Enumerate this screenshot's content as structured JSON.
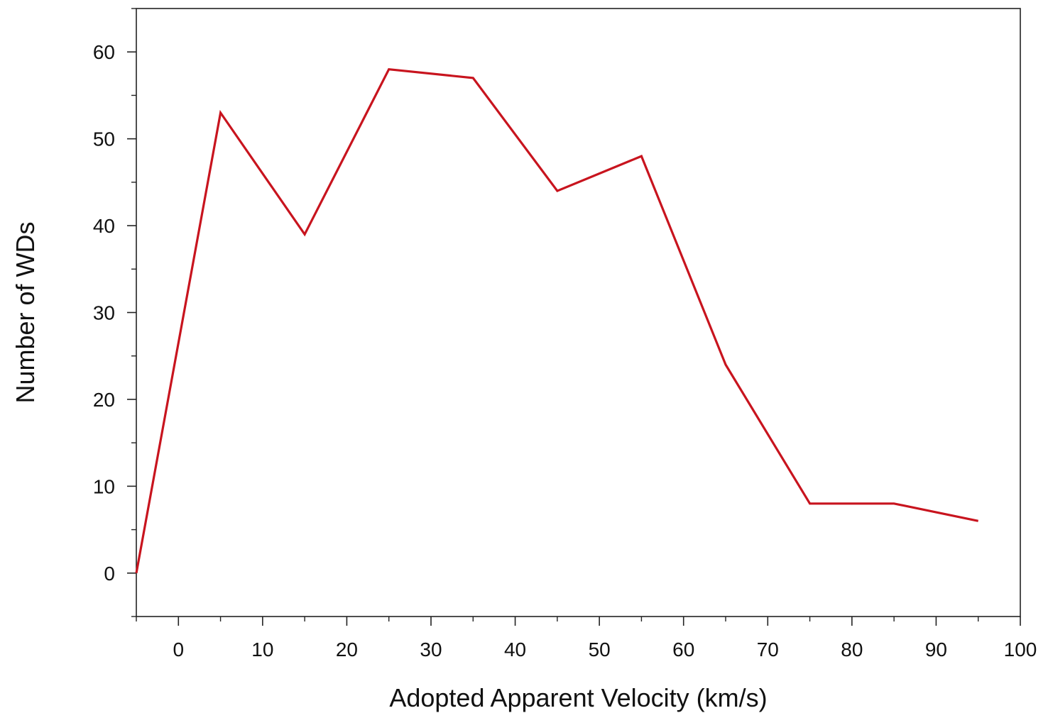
{
  "chart_data": {
    "type": "line",
    "title": "",
    "xlabel": "Adopted Apparent Velocity (km/s)",
    "ylabel": "Number of WDs",
    "xlim": [
      -5,
      100
    ],
    "ylim": [
      -5,
      65
    ],
    "x_ticks": [
      0,
      10,
      20,
      30,
      40,
      50,
      60,
      70,
      80,
      90,
      100
    ],
    "y_ticks": [
      0,
      10,
      20,
      30,
      40,
      50,
      60
    ],
    "x_minor_step": 5,
    "y_minor_step": 5,
    "grid": false,
    "legend": "none",
    "series": [
      {
        "color": "#c8141e",
        "x": [
          -5,
          5,
          15,
          25,
          35,
          45,
          55,
          65,
          75,
          85,
          95
        ],
        "y": [
          0,
          53,
          39,
          58,
          57,
          44,
          48,
          24,
          8,
          8,
          6
        ]
      }
    ]
  }
}
